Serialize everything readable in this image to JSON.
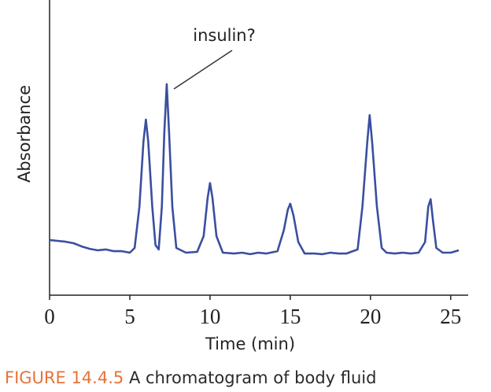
{
  "chart_data": {
    "type": "line",
    "x_label": "Time (min)",
    "y_label": "Absorbance",
    "annotation": "insulin?",
    "caption": {
      "label": "FIGURE 14.4.5",
      "text": "A chromatogram of body fluid"
    },
    "xlim": [
      0,
      25.5
    ],
    "ylim": [
      0,
      100
    ],
    "xticks": [
      0,
      5,
      10,
      15,
      20,
      25
    ],
    "series": [
      {
        "color": "#3a4fa0",
        "x": [
          0,
          0.5,
          1,
          1.5,
          2,
          2.5,
          3,
          3.5,
          4,
          4.5,
          5,
          5.3,
          5.6,
          5.85,
          6.0,
          6.15,
          6.4,
          6.6,
          6.8,
          7.0,
          7.15,
          7.3,
          7.45,
          7.65,
          7.9,
          8.5,
          9.2,
          9.6,
          9.85,
          10.0,
          10.15,
          10.4,
          10.8,
          11.5,
          12,
          12.5,
          13,
          13.5,
          14.2,
          14.6,
          14.85,
          15.0,
          15.2,
          15.5,
          15.9,
          16.5,
          17,
          17.5,
          18,
          18.5,
          19.2,
          19.5,
          19.8,
          19.95,
          20.1,
          20.4,
          20.7,
          21,
          21.5,
          22,
          22.5,
          23,
          23.4,
          23.6,
          23.75,
          23.9,
          24.1,
          24.5,
          25,
          25.5
        ],
        "values": [
          18.7,
          18.4,
          18.1,
          17.6,
          16.5,
          15.7,
          15.2,
          15.5,
          14.9,
          14.9,
          14.4,
          16,
          30,
          52,
          59.5,
          52,
          30,
          17,
          15.5,
          30,
          55,
          71.5,
          55,
          30,
          16,
          14.4,
          14.7,
          20,
          33,
          38,
          33,
          20,
          14.4,
          14.1,
          14.4,
          13.9,
          14.4,
          14.1,
          14.9,
          22,
          29,
          31,
          27,
          18,
          14.1,
          14.1,
          13.9,
          14.4,
          14.1,
          14.1,
          15.5,
          30,
          52,
          61,
          52,
          30,
          16,
          14.4,
          14.1,
          14.4,
          14.1,
          14.4,
          18,
          30,
          32.5,
          25,
          16,
          14.4,
          14.4,
          15.2
        ]
      }
    ]
  }
}
